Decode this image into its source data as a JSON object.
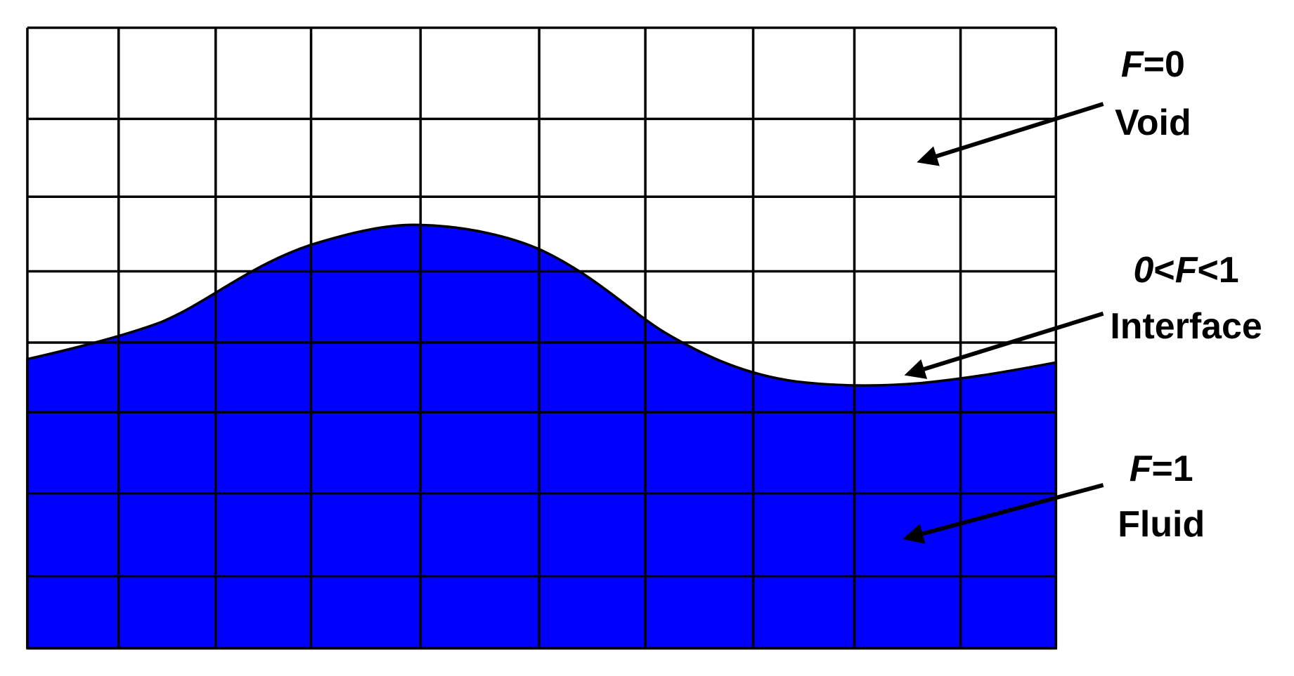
{
  "labels": [
    {
      "value": [
        "F",
        "=0"
      ],
      "name": "Void"
    },
    {
      "value": [
        "0",
        "<",
        "F",
        "<1"
      ],
      "name": "Interface"
    },
    {
      "value": [
        "F",
        "=1"
      ],
      "name": "Fluid"
    }
  ]
}
